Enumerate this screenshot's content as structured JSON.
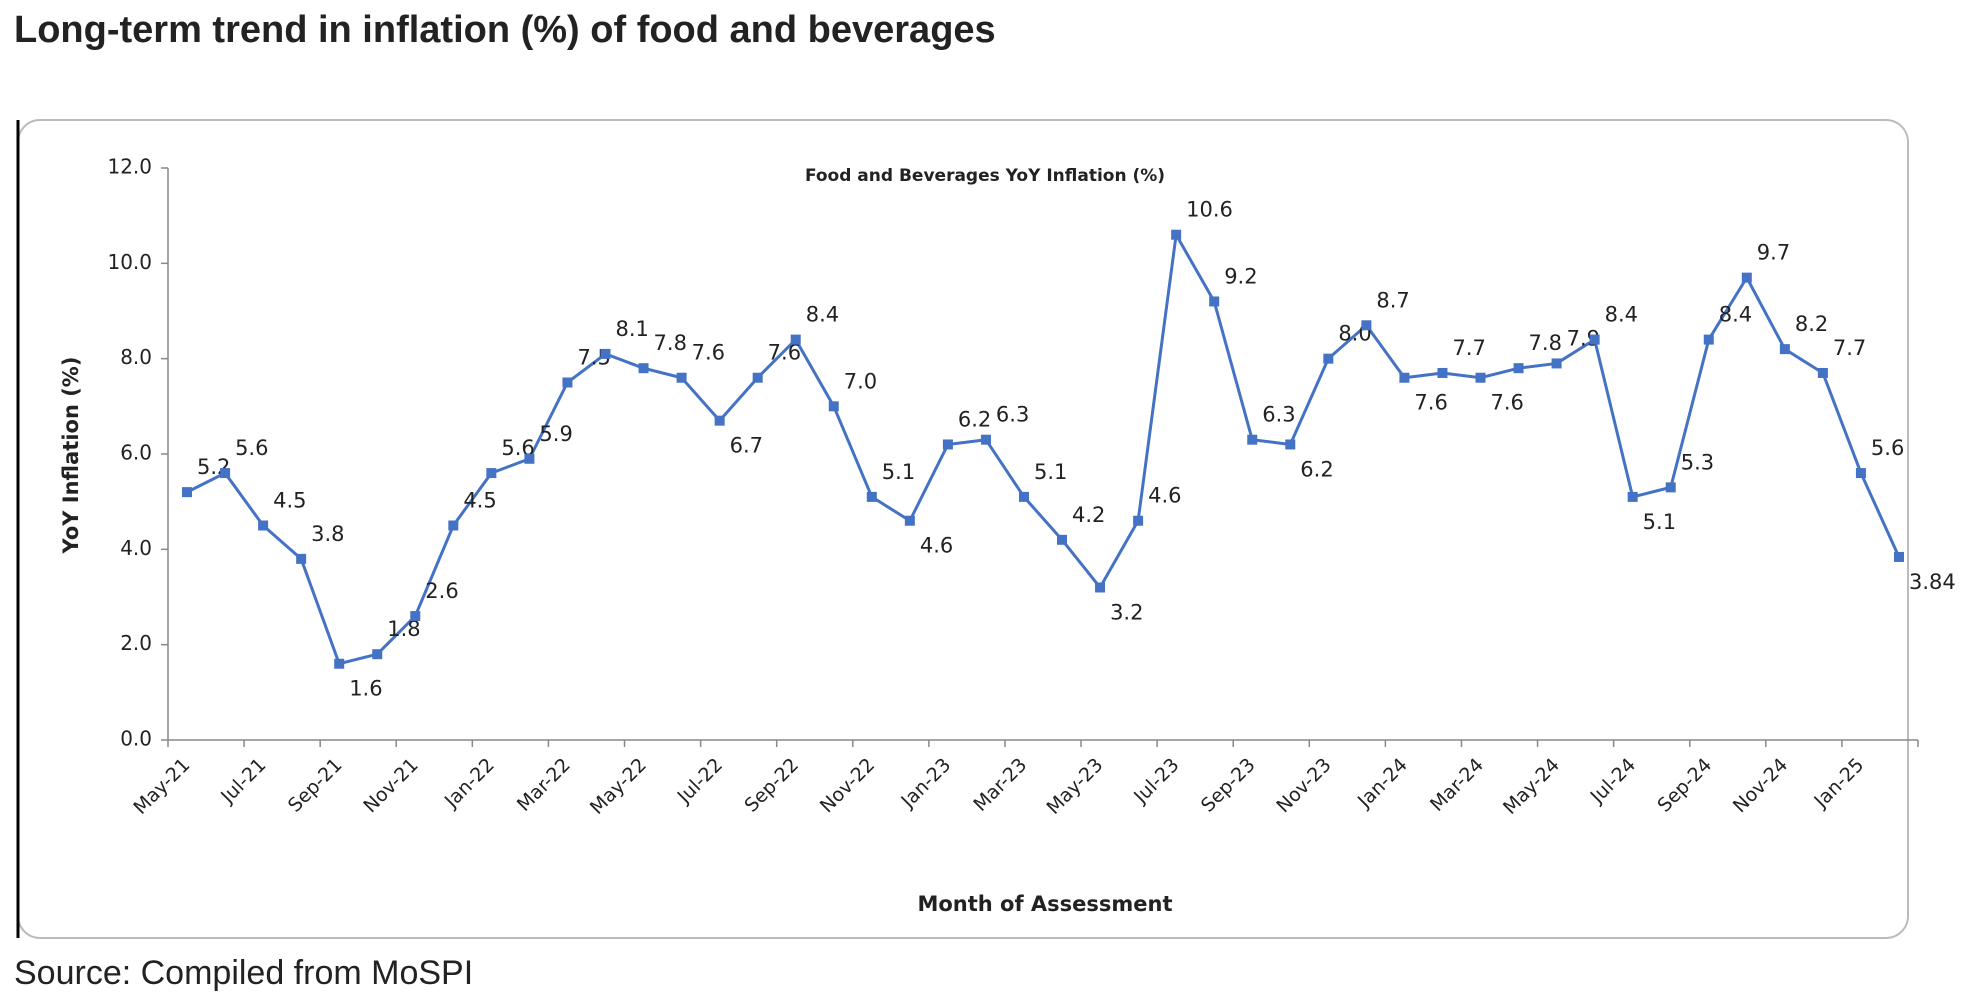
{
  "title": "Long-term trend in inflation (%) of food and beverages",
  "source": "Source: Compiled from MoSPI",
  "chart_data": {
    "type": "line",
    "title": "Food and Beverages YoY Inflation (%)",
    "x_label": "Month of Assessment",
    "y_label": "YoY Inflation (%)",
    "categories": [
      "May-21",
      null,
      "Jul-21",
      null,
      "Sep-21",
      null,
      "Nov-21",
      null,
      "Jan-22",
      null,
      "Mar-22",
      null,
      "May-22",
      null,
      "Jul-22",
      null,
      "Sep-22",
      null,
      "Nov-22",
      null,
      "Jan-23",
      null,
      "Mar-23",
      null,
      "May-23",
      null,
      "Jul-23",
      null,
      "Sep-23",
      null,
      "Nov-23",
      null,
      "Jan-24",
      null,
      "Mar-24",
      null,
      "May-24",
      null,
      "Jul-24",
      null,
      "Sep-24",
      null,
      "Nov-24",
      null,
      "Jan-25",
      null
    ],
    "series": [
      {
        "name": "Food and Beverages YoY Inflation (%)",
        "color": "#4472c4",
        "values": [
          5.2,
          5.6,
          4.5,
          3.8,
          1.6,
          1.8,
          2.6,
          4.5,
          5.6,
          5.9,
          7.5,
          8.1,
          7.8,
          7.6,
          6.7,
          7.6,
          8.4,
          7.0,
          5.1,
          4.6,
          6.2,
          6.3,
          5.1,
          4.2,
          3.2,
          4.6,
          10.6,
          9.2,
          6.3,
          6.2,
          8.0,
          8.7,
          7.6,
          7.7,
          7.6,
          7.8,
          7.9,
          8.4,
          5.1,
          5.3,
          8.4,
          9.7,
          8.2,
          7.7,
          5.6,
          3.84
        ],
        "value_labels": [
          "5.2",
          "5.6",
          "4.5",
          "3.8",
          "1.6",
          "1.8",
          "2.6",
          "4.5",
          "5.6",
          "5.9",
          "7.5",
          "8.1",
          "7.8",
          "7.6",
          "6.7",
          "7.6",
          "8.4",
          "7.0",
          "5.1",
          "4.6",
          "6.2",
          "6.3",
          "5.1",
          "4.2",
          "3.2",
          "4.6",
          "10.6",
          "9.2",
          "6.3",
          "6.2",
          "8.0",
          "8.7",
          "7.6",
          "7.7",
          "7.6",
          "7.8",
          "7.9",
          "8.4",
          "5.1",
          "5.3",
          "8.4",
          "9.7",
          "8.2",
          "7.7",
          "5.6",
          "3.84"
        ]
      }
    ],
    "ylim": [
      0,
      12
    ],
    "yticks": [
      {
        "value": 0,
        "label": "0.0"
      },
      {
        "value": 2,
        "label": "2.0"
      },
      {
        "value": 4,
        "label": "4.0"
      },
      {
        "value": 6,
        "label": "6.0"
      },
      {
        "value": 8,
        "label": "8.0"
      },
      {
        "value": 10,
        "label": "10.0"
      },
      {
        "value": 12,
        "label": "12.0"
      }
    ],
    "grid": false
  }
}
